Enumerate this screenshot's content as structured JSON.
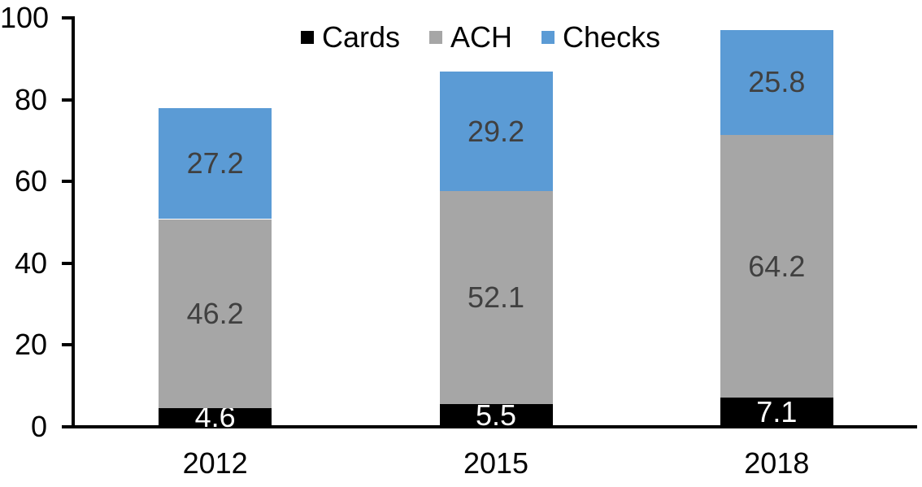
{
  "chart_data": {
    "type": "bar",
    "stacked": true,
    "title": "",
    "categories": [
      "2012",
      "2015",
      "2018"
    ],
    "series": [
      {
        "name": "Cards",
        "color": "#000000",
        "label_color": "#ffffff",
        "values": [
          4.6,
          5.5,
          7.1
        ]
      },
      {
        "name": "ACH",
        "color": "#a6a6a6",
        "label_color": "#404040",
        "values": [
          46.2,
          52.1,
          64.2
        ]
      },
      {
        "name": "Checks",
        "color": "#5b9bd5",
        "label_color": "#404040",
        "values": [
          27.2,
          29.2,
          25.8
        ]
      }
    ],
    "totals": [
      78.0,
      86.8,
      97.1
    ],
    "y_axis": {
      "min": 0,
      "max": 100,
      "tick_step": 20,
      "tick_labels": [
        "0",
        "20",
        "40",
        "60",
        "80",
        "100"
      ]
    },
    "x_axis": {
      "label": ""
    },
    "legend_position": "top-center",
    "grid": false,
    "data_labels_shown": true,
    "colors": {
      "axis": "#000000",
      "background": "#ffffff"
    }
  }
}
